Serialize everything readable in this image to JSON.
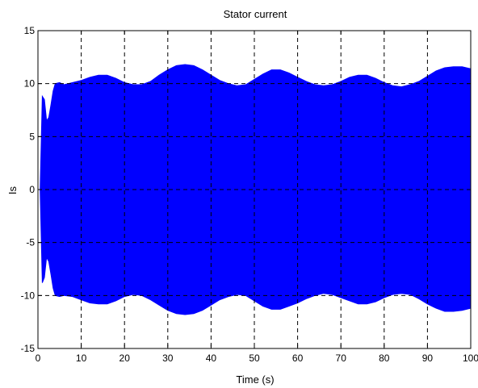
{
  "chart_data": {
    "type": "area",
    "title": "Stator current",
    "xlabel": "Time (s)",
    "ylabel": "Is",
    "xlim": [
      0,
      100
    ],
    "ylim": [
      -15,
      15
    ],
    "xticks": [
      0,
      10,
      20,
      30,
      40,
      50,
      60,
      70,
      80,
      90,
      100
    ],
    "yticks": [
      15,
      10,
      5,
      0,
      -5,
      -10,
      -15
    ],
    "grid": true,
    "grid_style": "dashed",
    "series": [
      {
        "color": "#0000ff",
        "description_of_fill": "oscillating current shown as filled envelope between upper and lower bounds",
        "x": [
          0.5,
          1,
          1.5,
          2,
          2.5,
          3,
          3.5,
          4,
          5,
          6,
          8,
          10,
          12,
          14,
          16,
          18,
          20,
          22,
          24,
          26,
          28,
          30,
          32,
          34,
          36,
          38,
          40,
          42,
          44,
          46,
          48,
          50,
          52,
          54,
          56,
          58,
          60,
          62,
          64,
          66,
          68,
          70,
          72,
          74,
          76,
          78,
          80,
          82,
          84,
          86,
          88,
          90,
          92,
          94,
          96,
          98,
          100
        ],
        "upper": [
          0,
          8.8,
          8.5,
          6.5,
          6.8,
          8.0,
          9.3,
          10.0,
          10.1,
          9.9,
          10.1,
          10.3,
          10.6,
          10.8,
          10.8,
          10.5,
          10.1,
          9.9,
          9.9,
          10.2,
          10.8,
          11.3,
          11.7,
          11.8,
          11.7,
          11.3,
          10.8,
          10.3,
          10.0,
          9.8,
          9.9,
          10.4,
          10.9,
          11.3,
          11.3,
          11.0,
          10.6,
          10.2,
          9.9,
          9.8,
          9.9,
          10.2,
          10.6,
          10.8,
          10.8,
          10.5,
          10.1,
          9.8,
          9.7,
          9.9,
          10.2,
          10.7,
          11.2,
          11.5,
          11.6,
          11.6,
          11.4
        ],
        "lower": [
          0,
          -8.8,
          -8.3,
          -6.4,
          -6.8,
          -8.0,
          -9.3,
          -10.0,
          -10.1,
          -10.0,
          -10.1,
          -10.4,
          -10.7,
          -10.8,
          -10.8,
          -10.5,
          -10.1,
          -9.9,
          -10.0,
          -10.4,
          -10.9,
          -11.4,
          -11.7,
          -11.8,
          -11.7,
          -11.4,
          -10.9,
          -10.4,
          -10.1,
          -9.9,
          -10.0,
          -10.5,
          -11.0,
          -11.3,
          -11.3,
          -11.0,
          -10.7,
          -10.3,
          -10.0,
          -9.8,
          -9.9,
          -10.2,
          -10.5,
          -10.8,
          -10.8,
          -10.6,
          -10.2,
          -9.9,
          -9.8,
          -9.9,
          -10.3,
          -10.8,
          -11.2,
          -11.5,
          -11.5,
          -11.4,
          -11.2
        ]
      }
    ]
  }
}
